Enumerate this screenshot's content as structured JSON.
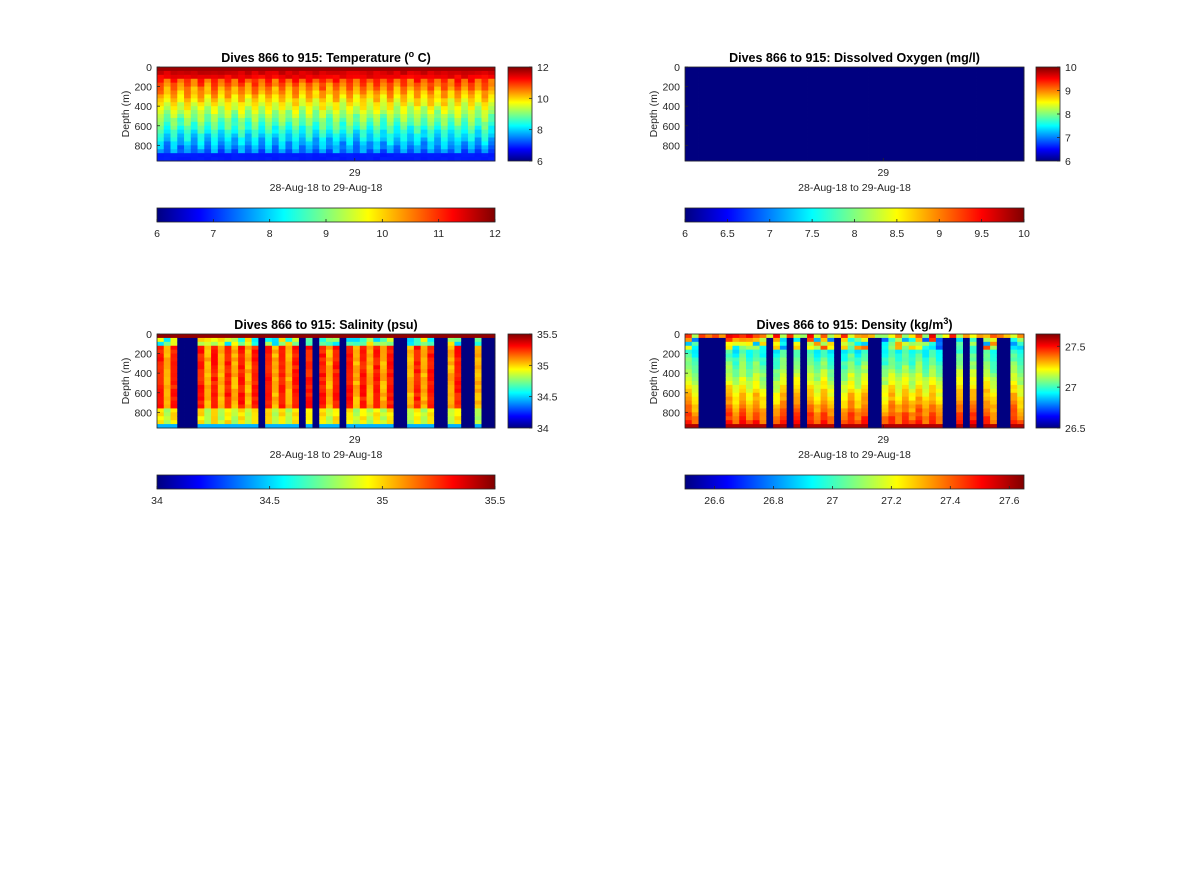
{
  "chart_data": [
    {
      "type": "heatmap",
      "title": "Dives 866 to 915: Temperature (",
      "title_sup": "o",
      "title_tail": " C)",
      "ylabel": "Depth (m)",
      "xlabel": "28-Aug-18 to 29-Aug-18",
      "x_tick_labels": [
        "29"
      ],
      "y_tick_labels": [
        "0",
        "200",
        "400",
        "600",
        "800"
      ],
      "y_ticks": [
        0,
        200,
        400,
        600,
        800
      ],
      "ylim": [
        0,
        960
      ],
      "clim": [
        6,
        12
      ],
      "side_colorbar_ticks": [
        "12",
        "10",
        "8",
        "6"
      ],
      "side_colorbar_values": [
        12,
        10,
        8,
        6
      ],
      "bottom_colorbar_ticks": [
        "6",
        "7",
        "8",
        "9",
        "10",
        "11",
        "12"
      ],
      "bottom_colorbar_values": [
        6,
        7,
        8,
        9,
        10,
        11,
        12
      ],
      "pattern": "temperature"
    },
    {
      "type": "heatmap",
      "title": "Dives 866 to 915: Dissolved Oxygen (mg/l)",
      "title_sup": "",
      "title_tail": "",
      "ylabel": "Depth (m)",
      "xlabel": "28-Aug-18 to 29-Aug-18",
      "x_tick_labels": [
        "29"
      ],
      "y_tick_labels": [
        "0",
        "200",
        "400",
        "600",
        "800"
      ],
      "y_ticks": [
        0,
        200,
        400,
        600,
        800
      ],
      "ylim": [
        0,
        960
      ],
      "clim": [
        6,
        10
      ],
      "side_colorbar_ticks": [
        "10",
        "9",
        "8",
        "7",
        "6"
      ],
      "side_colorbar_values": [
        10,
        9,
        8,
        7,
        6
      ],
      "bottom_colorbar_ticks": [
        "6",
        "6.5",
        "7",
        "7.5",
        "8",
        "8.5",
        "9",
        "9.5",
        "10"
      ],
      "bottom_colorbar_values": [
        6,
        6.5,
        7,
        7.5,
        8,
        8.5,
        9,
        9.5,
        10
      ],
      "pattern": "oxygen"
    },
    {
      "type": "heatmap",
      "title": "Dives 866 to 915: Salinity (psu)",
      "title_sup": "",
      "title_tail": "",
      "ylabel": "Depth (m)",
      "xlabel": "28-Aug-18 to 29-Aug-18",
      "x_tick_labels": [
        "29"
      ],
      "y_tick_labels": [
        "0",
        "200",
        "400",
        "600",
        "800"
      ],
      "y_ticks": [
        0,
        200,
        400,
        600,
        800
      ],
      "ylim": [
        0,
        960
      ],
      "clim": [
        34,
        35.5
      ],
      "side_colorbar_ticks": [
        "35.5",
        "35",
        "34.5",
        "34"
      ],
      "side_colorbar_values": [
        35.5,
        35,
        34.5,
        34
      ],
      "bottom_colorbar_ticks": [
        "34",
        "34.5",
        "35",
        "35.5"
      ],
      "bottom_colorbar_values": [
        34,
        34.5,
        35,
        35.5
      ],
      "pattern": "salinity"
    },
    {
      "type": "heatmap",
      "title": "Dives 866 to 915: Density (kg/m",
      "title_sup": "3",
      "title_tail": ")",
      "ylabel": "Depth (m)",
      "xlabel": "28-Aug-18 to 29-Aug-18",
      "x_tick_labels": [
        "29"
      ],
      "y_tick_labels": [
        "0",
        "200",
        "400",
        "600",
        "800"
      ],
      "y_ticks": [
        0,
        200,
        400,
        600,
        800
      ],
      "ylim": [
        0,
        960
      ],
      "clim": [
        26.5,
        27.65
      ],
      "side_colorbar_ticks": [
        "27.5",
        "27",
        "26.5"
      ],
      "side_colorbar_values": [
        27.5,
        27,
        26.5
      ],
      "bottom_colorbar_ticks": [
        "26.6",
        "26.8",
        "27",
        "27.2",
        "27.4",
        "27.6"
      ],
      "bottom_colorbar_values": [
        26.6,
        26.8,
        27,
        27.2,
        27.4,
        27.6
      ],
      "pattern": "density"
    }
  ]
}
